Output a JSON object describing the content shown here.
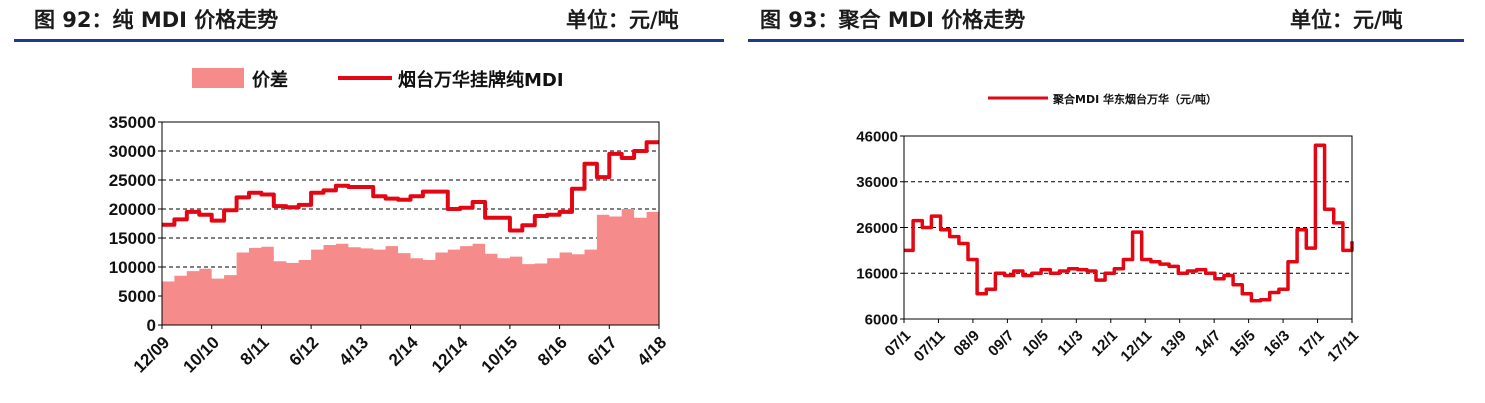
{
  "left_panel": {
    "title": "图 92：纯 MDI 价格走势",
    "unit": "单位：元/吨"
  },
  "right_panel": {
    "title": "图 93：聚合 MDI 价格走势",
    "unit": "单位：元/吨"
  },
  "colors": {
    "rule": "#1f3a8a",
    "line": "#e30613",
    "area": "#f58b8b"
  },
  "chart_data": [
    {
      "type": "line",
      "ylim": [
        0,
        35000
      ],
      "yticks": [
        0,
        5000,
        10000,
        15000,
        20000,
        25000,
        30000,
        35000
      ],
      "x_ticks": [
        "12/09",
        "10/10",
        "8/11",
        "6/12",
        "4/13",
        "2/14",
        "12/14",
        "10/15",
        "8/16",
        "6/17",
        "4/18"
      ],
      "legend_position": "top",
      "series": [
        {
          "name": "价差",
          "kind": "area",
          "values": [
            7500,
            8500,
            9300,
            9700,
            8000,
            8600,
            12500,
            13300,
            13500,
            11000,
            10700,
            11200,
            13000,
            13800,
            14000,
            13400,
            13200,
            13000,
            13600,
            12400,
            11500,
            11200,
            12500,
            13000,
            13600,
            14000,
            12300,
            11500,
            11800,
            10500,
            10600,
            11500,
            12500,
            12200,
            13000,
            19000,
            18700,
            20000,
            18500,
            19500,
            21000
          ]
        },
        {
          "name": "烟台万华挂牌纯MDI",
          "kind": "line",
          "values": [
            17300,
            18200,
            19500,
            19000,
            18000,
            19800,
            22000,
            22800,
            22500,
            20500,
            20300,
            20700,
            22800,
            23200,
            24000,
            23800,
            23800,
            22200,
            21800,
            21600,
            22200,
            23000,
            23000,
            20000,
            20200,
            21200,
            18500,
            18500,
            16300,
            17200,
            18800,
            19000,
            19500,
            23500,
            27800,
            25500,
            29500,
            28800,
            30000,
            31500,
            31500
          ]
        }
      ]
    },
    {
      "type": "line",
      "ylim": [
        6000,
        46000
      ],
      "yticks": [
        6000,
        16000,
        26000,
        36000,
        46000
      ],
      "x_ticks": [
        "07/1",
        "07/11",
        "08/9",
        "09/7",
        "10/5",
        "11/3",
        "12/1",
        "12/11",
        "13/9",
        "14/7",
        "15/5",
        "16/3",
        "17/1",
        "17/11"
      ],
      "legend_position": "top",
      "series": [
        {
          "name": "聚合MDI 华东烟台万华（元/吨）",
          "kind": "line",
          "values": [
            21000,
            27500,
            26000,
            28500,
            25500,
            24000,
            22500,
            19000,
            11500,
            12500,
            16000,
            15500,
            16500,
            15500,
            16000,
            16800,
            16000,
            16500,
            17000,
            16800,
            16500,
            14500,
            16000,
            17000,
            19000,
            25000,
            19000,
            18500,
            18000,
            17500,
            16000,
            16500,
            16800,
            16000,
            14800,
            15500,
            13500,
            11500,
            10000,
            10200,
            11800,
            12500,
            18500,
            25500,
            21500,
            44000,
            30000,
            27000,
            21000,
            23000
          ]
        }
      ]
    }
  ]
}
